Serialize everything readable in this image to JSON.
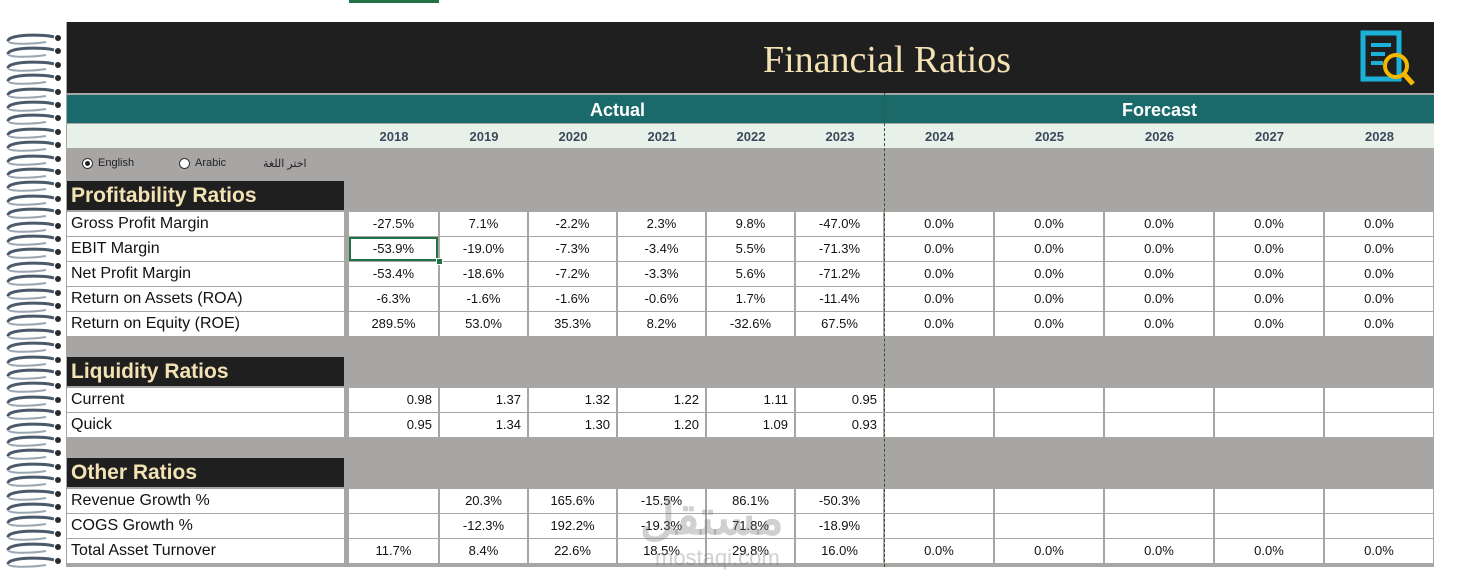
{
  "title": "Financial Ratios",
  "bands": {
    "actual": "Actual",
    "forecast": "Forecast"
  },
  "years": [
    "2018",
    "2019",
    "2020",
    "2021",
    "2022",
    "2023",
    "2024",
    "2025",
    "2026",
    "2027",
    "2028"
  ],
  "language": {
    "english": "English",
    "arabic": "Arabic",
    "choose": "اختر اللغة",
    "selected": "English"
  },
  "sections": [
    {
      "title": "Profitability Ratios",
      "rows": [
        {
          "label": "Gross Profit Margin",
          "values": [
            "-27.5%",
            "7.1%",
            "-2.2%",
            "2.3%",
            "9.8%",
            "-47.0%",
            "0.0%",
            "0.0%",
            "0.0%",
            "0.0%",
            "0.0%"
          ]
        },
        {
          "label": "EBIT Margin",
          "values": [
            "-53.9%",
            "-19.0%",
            "-7.3%",
            "-3.4%",
            "5.5%",
            "-71.3%",
            "0.0%",
            "0.0%",
            "0.0%",
            "0.0%",
            "0.0%"
          ]
        },
        {
          "label": "Net Profit Margin",
          "values": [
            "-53.4%",
            "-18.6%",
            "-7.2%",
            "-3.3%",
            "5.6%",
            "-71.2%",
            "0.0%",
            "0.0%",
            "0.0%",
            "0.0%",
            "0.0%"
          ]
        },
        {
          "label": "Return on Assets (ROA)",
          "values": [
            "-6.3%",
            "-1.6%",
            "-1.6%",
            "-0.6%",
            "1.7%",
            "-11.4%",
            "0.0%",
            "0.0%",
            "0.0%",
            "0.0%",
            "0.0%"
          ]
        },
        {
          "label": "Return on Equity (ROE)",
          "values": [
            "289.5%",
            "53.0%",
            "35.3%",
            "8.2%",
            "-32.6%",
            "67.5%",
            "0.0%",
            "0.0%",
            "0.0%",
            "0.0%",
            "0.0%"
          ]
        }
      ]
    },
    {
      "title": "Liquidity Ratios",
      "rows": [
        {
          "label": "Current",
          "values": [
            "0.98",
            "1.37",
            "1.32",
            "1.22",
            "1.11",
            "0.95",
            "",
            "",
            "",
            "",
            ""
          ]
        },
        {
          "label": "Quick",
          "values": [
            "0.95",
            "1.34",
            "1.30",
            "1.20",
            "1.09",
            "0.93",
            "",
            "",
            "",
            "",
            ""
          ]
        }
      ]
    },
    {
      "title": "Other Ratios",
      "rows": [
        {
          "label": "Revenue Growth %",
          "values": [
            "",
            "20.3%",
            "165.6%",
            "-15.5%",
            "86.1%",
            "-50.3%",
            "",
            "",
            "",
            "",
            ""
          ]
        },
        {
          "label": "COGS Growth %",
          "values": [
            "",
            "-12.3%",
            "192.2%",
            "-19.3%",
            "71.8%",
            "-18.9%",
            "",
            "",
            "",
            "",
            ""
          ]
        },
        {
          "label": "Total Asset Turnover",
          "values": [
            "11.7%",
            "8.4%",
            "22.6%",
            "18.5%",
            "29.8%",
            "16.0%",
            "0.0%",
            "0.0%",
            "0.0%",
            "0.0%",
            "0.0%"
          ]
        }
      ]
    }
  ],
  "watermark": {
    "arabic": "مستقل",
    "latin": "mostaqi.com"
  },
  "colors": {
    "title_bg": "#1f1f1f",
    "title_text": "#f3e2b3",
    "band": "#1a6a6c",
    "sheet_bg": "#a8a5a5",
    "icon": "#1ab0d8",
    "icon_accent": "#f5b800"
  }
}
